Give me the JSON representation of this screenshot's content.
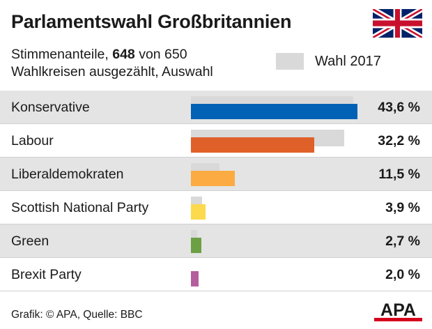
{
  "title": "Parlamentswahl Großbritannien",
  "subtitle": {
    "prefix": "Stimmenanteile, ",
    "counted": "648",
    "middle": " von 650",
    "line2": "Wahlkreisen ausgezählt, Auswahl"
  },
  "legend": {
    "previous_label": "Wahl 2017",
    "previous_color": "#d9d9d9"
  },
  "source": "Grafik: © APA, Quelle: BBC",
  "logo_text": "APA",
  "colors": {
    "row_shade": "#e4e4e4",
    "logo_red": "#d4001b",
    "logo_black": "#1a1a1a"
  },
  "chart_data": {
    "type": "bar",
    "orientation": "horizontal",
    "title": "Parlamentswahl Großbritannien",
    "unit": "%",
    "categories": [
      "Konservative",
      "Labour",
      "Liberaldemokraten",
      "Scottish National Party",
      "Green",
      "Brexit Party"
    ],
    "value_labels": [
      "43,6 %",
      "32,2 %",
      "11,5 %",
      "3,9 %",
      "2,7 %",
      "2,0 %"
    ],
    "series": [
      {
        "name": "Wahl 2017",
        "values": [
          42.4,
          40.0,
          7.4,
          3.0,
          1.6,
          0
        ],
        "color": "#d9d9d9"
      },
      {
        "values": [
          43.6,
          32.2,
          11.5,
          3.9,
          2.7,
          2.0
        ],
        "colors": [
          "#0061b5",
          "#e0602a",
          "#fbab42",
          "#fcd94d",
          "#6da045",
          "#b55e9e"
        ]
      }
    ],
    "xlim": [
      0,
      45
    ],
    "grid": false,
    "legend_position": "top-right"
  }
}
